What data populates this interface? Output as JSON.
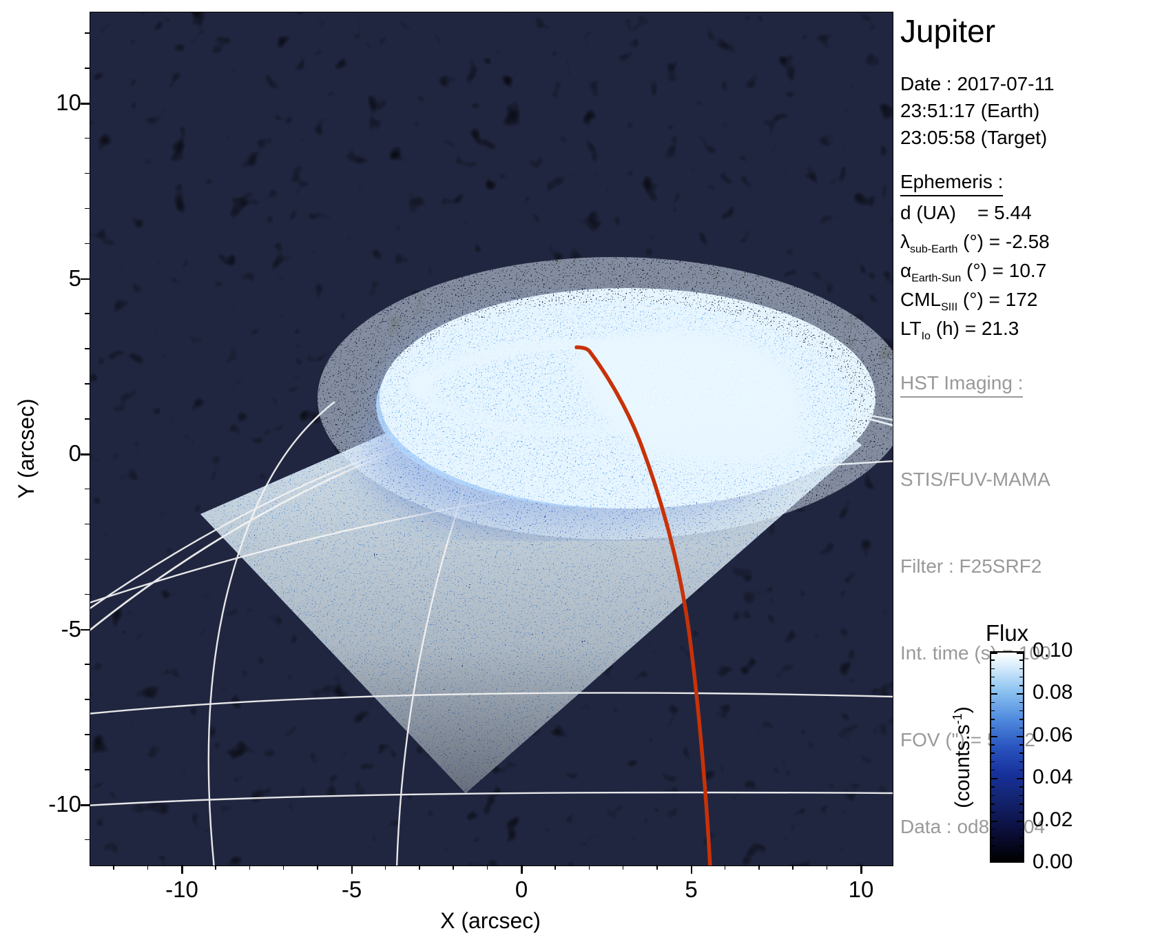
{
  "header": {
    "title": "Jupiter",
    "date_lines": [
      "Date : 2017-07-11",
      "23:51:17 (Earth)",
      "23:05:58 (Target)"
    ]
  },
  "ephemeris": {
    "heading": "Ephemeris :",
    "rows": [
      {
        "symbol": "d",
        "sub": "",
        "rest": " (UA)    = 5.44"
      },
      {
        "symbol": "λ",
        "sub": "sub-Earth",
        "rest": " (°) = -2.58"
      },
      {
        "symbol": "α",
        "sub": "Earth-Sun",
        "rest": " (°) = 10.7"
      },
      {
        "symbol": "CML",
        "sub": "SIII",
        "rest": " (°) = 172"
      },
      {
        "symbol": "LT",
        "sub": "Io",
        "rest": " (h) = 21.3"
      }
    ]
  },
  "hst": {
    "heading": "HST Imaging :",
    "lines": [
      "STIS/FUV-MAMA",
      "Filter : F25SRF2",
      "Int. time (s) = 100",
      "FOV (\") = 53.82",
      "Data : od8k0yj04"
    ]
  },
  "axes": {
    "xlabel": "X (arcsec)",
    "ylabel": "Y (arcsec)",
    "xticks": [
      -10,
      -5,
      0,
      5,
      10
    ],
    "yticks": [
      10,
      5,
      0,
      -5,
      -10
    ]
  },
  "colorbar": {
    "title": "Flux",
    "unit_prefix": "(counts.s",
    "unit_sup": "-1",
    "unit_suffix": ")",
    "tick_labels": [
      "0.10",
      "0.08",
      "0.06",
      "0.04",
      "0.02",
      "0.00"
    ]
  },
  "colors": {
    "accent_red": "#c83208",
    "noise_blue": "#1c43ae",
    "grid_white": "#f2f2f2",
    "muted_text": "#999999",
    "background": "#000000"
  },
  "chart_data": {
    "type": "heatmap",
    "title": "Jupiter",
    "xlabel": "X (arcsec)",
    "ylabel": "Y (arcsec)",
    "xlim": [
      -12.7,
      10.9
    ],
    "ylim": [
      -11.7,
      12.6
    ],
    "xticks": [
      -10,
      -5,
      0,
      5,
      10
    ],
    "yticks": [
      10,
      5,
      0,
      -5,
      -10
    ],
    "grid": false,
    "colorbar": {
      "title": "Flux",
      "unit": "(counts.s-1)",
      "range": [
        0.0,
        0.1
      ],
      "ticks": [
        0.0,
        0.02,
        0.04,
        0.06,
        0.08,
        0.1
      ],
      "colormap": "black-blue-white"
    },
    "features": [
      "Saturated white FUV auroral oval centered near (2.5, 1.5) arcsec with C-shaped main emission arc opening right",
      "Diamond-shaped (rotated-square) STIS detector field of view filled with blue background count noise, corners approx (-9.5,-1.8), (4.7,4.5), (10,0.3), (-1.7,-10)",
      "White planetary graticule: limb arc plus latitude circles crossing full width and meridians converging toward the pole behind the aurora",
      "Red curve (Io flux-tube footprint track) from approx (2.0, 3.0) arcsec curving down to (5.5, -12) at bottom edge",
      "Black sky background elsewhere"
    ]
  }
}
